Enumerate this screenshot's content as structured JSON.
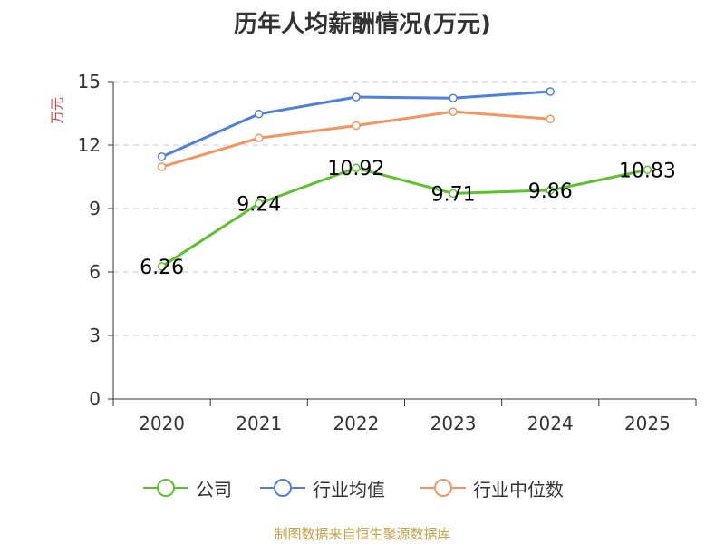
{
  "title": "历年人均薪酬情况(万元)",
  "footer": "制图数据来自恒生聚源数据库",
  "chart_data": {
    "type": "line",
    "title": "历年人均薪酬情况(万元)",
    "xlabel": "",
    "ylabel": "万元",
    "categories": [
      "2020",
      "2021",
      "2022",
      "2023",
      "2024",
      "2025"
    ],
    "ylim": [
      0,
      15
    ],
    "yticks": [
      0,
      3,
      6,
      9,
      12,
      15
    ],
    "grid": true,
    "legend_position": "bottom",
    "series": [
      {
        "name": "公司",
        "color": "#5cc22b",
        "values": [
          6.26,
          9.24,
          10.92,
          9.71,
          9.86,
          10.83
        ],
        "labels": [
          "6.26",
          "9.24",
          "10.92",
          "9.71",
          "9.86",
          "10.83"
        ]
      },
      {
        "name": "行业均值",
        "color": "#4e7fdc",
        "values": [
          11.45,
          13.47,
          14.27,
          14.22,
          14.53,
          null
        ]
      },
      {
        "name": "行业中位数",
        "color": "#f59461",
        "values": [
          10.97,
          12.33,
          12.92,
          13.58,
          13.23,
          null
        ]
      }
    ]
  }
}
